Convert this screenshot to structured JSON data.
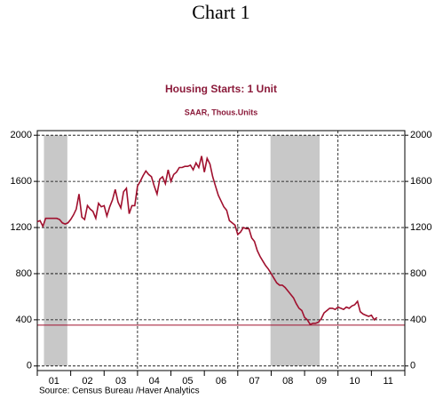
{
  "chart_data": {
    "type": "line",
    "title": "Chart 1",
    "subtitle": "Housing Starts: 1 Unit",
    "units": "SAAR, Thous.Units",
    "source": "Source:  Census Bureau /Haver Analytics",
    "xlim": [
      2001,
      2012
    ],
    "ylim": [
      -40,
      2040
    ],
    "yticks": [
      0,
      400,
      800,
      1200,
      1600,
      2000
    ],
    "xticks": [
      {
        "value": 2001.5,
        "label": "01"
      },
      {
        "value": 2002.5,
        "label": "02"
      },
      {
        "value": 2003.5,
        "label": "03"
      },
      {
        "value": 2004.5,
        "label": "04"
      },
      {
        "value": 2005.5,
        "label": "05"
      },
      {
        "value": 2006.5,
        "label": "06"
      },
      {
        "value": 2007.5,
        "label": "07"
      },
      {
        "value": 2008.5,
        "label": "08"
      },
      {
        "value": 2009.5,
        "label": "09"
      },
      {
        "value": 2010.5,
        "label": "10"
      },
      {
        "value": 2011.5,
        "label": "11"
      }
    ],
    "xtick_marks": [
      2001,
      2002,
      2003,
      2004,
      2005,
      2006,
      2007,
      2008,
      2009,
      2010,
      2011,
      2012
    ],
    "xgrid": [
      2004,
      2007,
      2010
    ],
    "grid": true,
    "recessions": [
      [
        2001.2,
        2001.9
      ],
      [
        2007.98,
        2009.45
      ]
    ],
    "recession_color": "#c8c8c8",
    "reference_line": 354,
    "series": [
      {
        "name": "Housing Starts: 1 Unit",
        "color": "#a0102e",
        "x": [
          2001.0,
          2001.083,
          2001.167,
          2001.25,
          2001.333,
          2001.417,
          2001.5,
          2001.583,
          2001.667,
          2001.75,
          2001.833,
          2001.917,
          2002.0,
          2002.083,
          2002.167,
          2002.25,
          2002.333,
          2002.417,
          2002.5,
          2002.583,
          2002.667,
          2002.75,
          2002.833,
          2002.917,
          2003.0,
          2003.083,
          2003.167,
          2003.25,
          2003.333,
          2003.417,
          2003.5,
          2003.583,
          2003.667,
          2003.75,
          2003.833,
          2003.917,
          2004.0,
          2004.083,
          2004.167,
          2004.25,
          2004.333,
          2004.417,
          2004.5,
          2004.583,
          2004.667,
          2004.75,
          2004.833,
          2004.917,
          2005.0,
          2005.083,
          2005.167,
          2005.25,
          2005.333,
          2005.417,
          2005.5,
          2005.583,
          2005.667,
          2005.75,
          2005.833,
          2005.917,
          2006.0,
          2006.083,
          2006.167,
          2006.25,
          2006.333,
          2006.417,
          2006.5,
          2006.583,
          2006.667,
          2006.75,
          2006.833,
          2006.917,
          2007.0,
          2007.083,
          2007.167,
          2007.25,
          2007.333,
          2007.417,
          2007.5,
          2007.583,
          2007.667,
          2007.75,
          2007.833,
          2007.917,
          2008.0,
          2008.083,
          2008.167,
          2008.25,
          2008.333,
          2008.417,
          2008.5,
          2008.583,
          2008.667,
          2008.75,
          2008.833,
          2008.917,
          2009.0,
          2009.083,
          2009.167,
          2009.25,
          2009.333,
          2009.417,
          2009.5,
          2009.583,
          2009.667,
          2009.75,
          2009.833,
          2009.917,
          2010.0,
          2010.083,
          2010.167,
          2010.25,
          2010.333,
          2010.417,
          2010.5,
          2010.583,
          2010.667,
          2010.75,
          2010.833,
          2010.917,
          2011.0,
          2011.083,
          2011.167
        ],
        "values": [
          1250,
          1260,
          1210,
          1280,
          1280,
          1280,
          1280,
          1280,
          1270,
          1240,
          1230,
          1240,
          1270,
          1310,
          1360,
          1490,
          1290,
          1270,
          1390,
          1360,
          1340,
          1280,
          1410,
          1380,
          1390,
          1300,
          1380,
          1440,
          1530,
          1420,
          1370,
          1510,
          1540,
          1320,
          1390,
          1390,
          1560,
          1600,
          1650,
          1690,
          1660,
          1640,
          1560,
          1490,
          1620,
          1640,
          1580,
          1700,
          1600,
          1660,
          1680,
          1720,
          1720,
          1730,
          1730,
          1740,
          1700,
          1760,
          1720,
          1820,
          1680,
          1800,
          1750,
          1640,
          1560,
          1480,
          1430,
          1380,
          1350,
          1260,
          1240,
          1220,
          1140,
          1160,
          1200,
          1190,
          1190,
          1110,
          1080,
          1000,
          950,
          910,
          870,
          840,
          800,
          760,
          720,
          700,
          700,
          680,
          650,
          620,
          590,
          540,
          500,
          480,
          420,
          400,
          360,
          370,
          370,
          380,
          410,
          460,
          480,
          500,
          500,
          490,
          510,
          500,
          490,
          510,
          500,
          520,
          530,
          560,
          470,
          450,
          440,
          430,
          440,
          400,
          420
        ]
      }
    ]
  }
}
